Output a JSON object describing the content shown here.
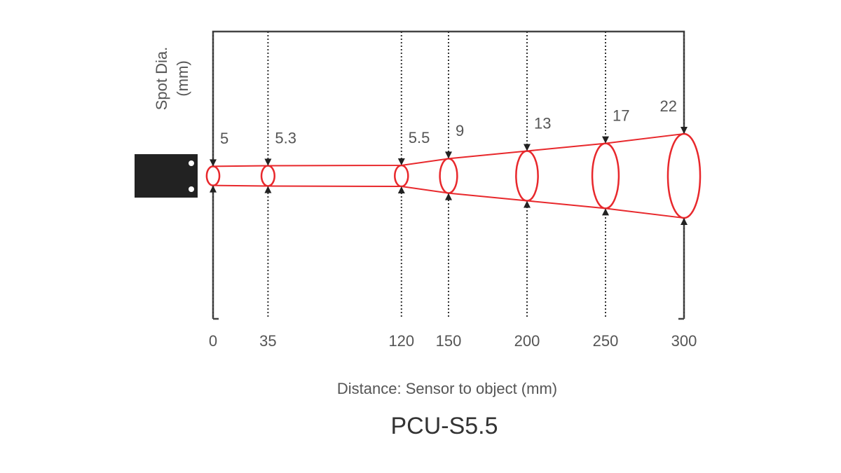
{
  "chart_data": {
    "type": "spot",
    "title": "PCU-S5.5",
    "xlabel": "Distance: Sensor to object (mm)",
    "ylabel": [
      "Spot Dia.",
      "(mm)"
    ],
    "x": [
      0,
      35,
      120,
      150,
      200,
      250,
      300
    ],
    "values": [
      5,
      5.3,
      5.5,
      9,
      13,
      17,
      22
    ],
    "color": "#e8282c",
    "xlim": [
      0,
      300
    ],
    "xticks": [
      0,
      35,
      120,
      150,
      200,
      250,
      300
    ],
    "grid": true
  }
}
